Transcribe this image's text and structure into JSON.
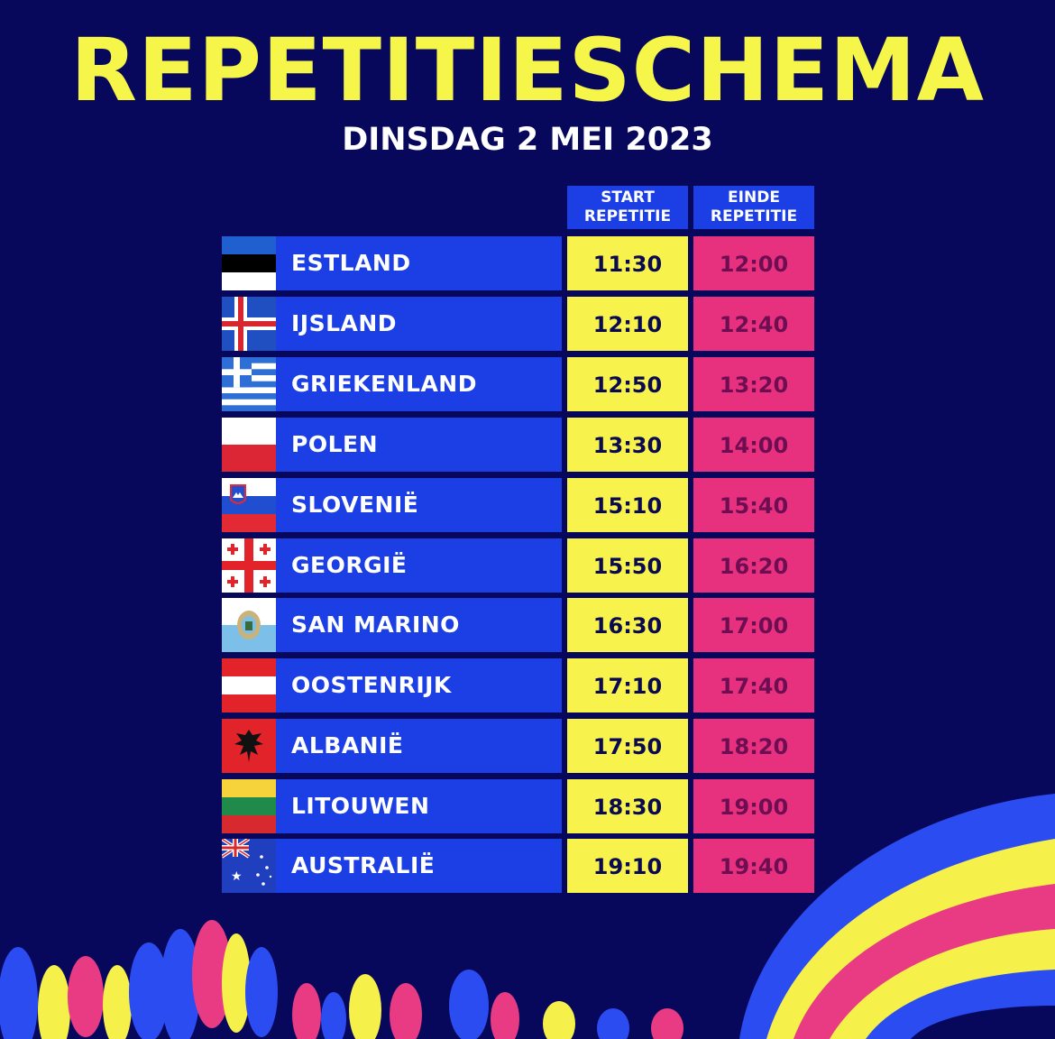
{
  "title": "REPETITIESCHEMA",
  "subtitle": "DINSDAG 2 MEI 2023",
  "headers": {
    "start_line1": "START",
    "start_line2": "REPETITIE",
    "end_line1": "EINDE",
    "end_line2": "REPETITIE"
  },
  "colors": {
    "background": "#07085c",
    "title": "#f6f54a",
    "country_cell": "#1b3fe4",
    "start_cell": "#f8f24c",
    "end_cell": "#e8317e"
  },
  "rows": [
    {
      "country": "ESTLAND",
      "flag": "estonia-flag",
      "start": "11:30",
      "end": "12:00"
    },
    {
      "country": "IJSLAND",
      "flag": "iceland-flag",
      "start": "12:10",
      "end": "12:40"
    },
    {
      "country": "GRIEKENLAND",
      "flag": "greece-flag",
      "start": "12:50",
      "end": "13:20"
    },
    {
      "country": "POLEN",
      "flag": "poland-flag",
      "start": "13:30",
      "end": "14:00"
    },
    {
      "country": "SLOVENIË",
      "flag": "slovenia-flag",
      "start": "15:10",
      "end": "15:40"
    },
    {
      "country": "GEORGIË",
      "flag": "georgia-flag",
      "start": "15:50",
      "end": "16:20"
    },
    {
      "country": "SAN MARINO",
      "flag": "san-marino-flag",
      "start": "16:30",
      "end": "17:00"
    },
    {
      "country": "OOSTENRIJK",
      "flag": "austria-flag",
      "start": "17:10",
      "end": "17:40"
    },
    {
      "country": "ALBANIË",
      "flag": "albania-flag",
      "start": "17:50",
      "end": "18:20"
    },
    {
      "country": "LITOUWEN",
      "flag": "lithuania-flag",
      "start": "18:30",
      "end": "19:00"
    },
    {
      "country": "AUSTRALIË",
      "flag": "australia-flag",
      "start": "19:10",
      "end": "19:40"
    }
  ]
}
